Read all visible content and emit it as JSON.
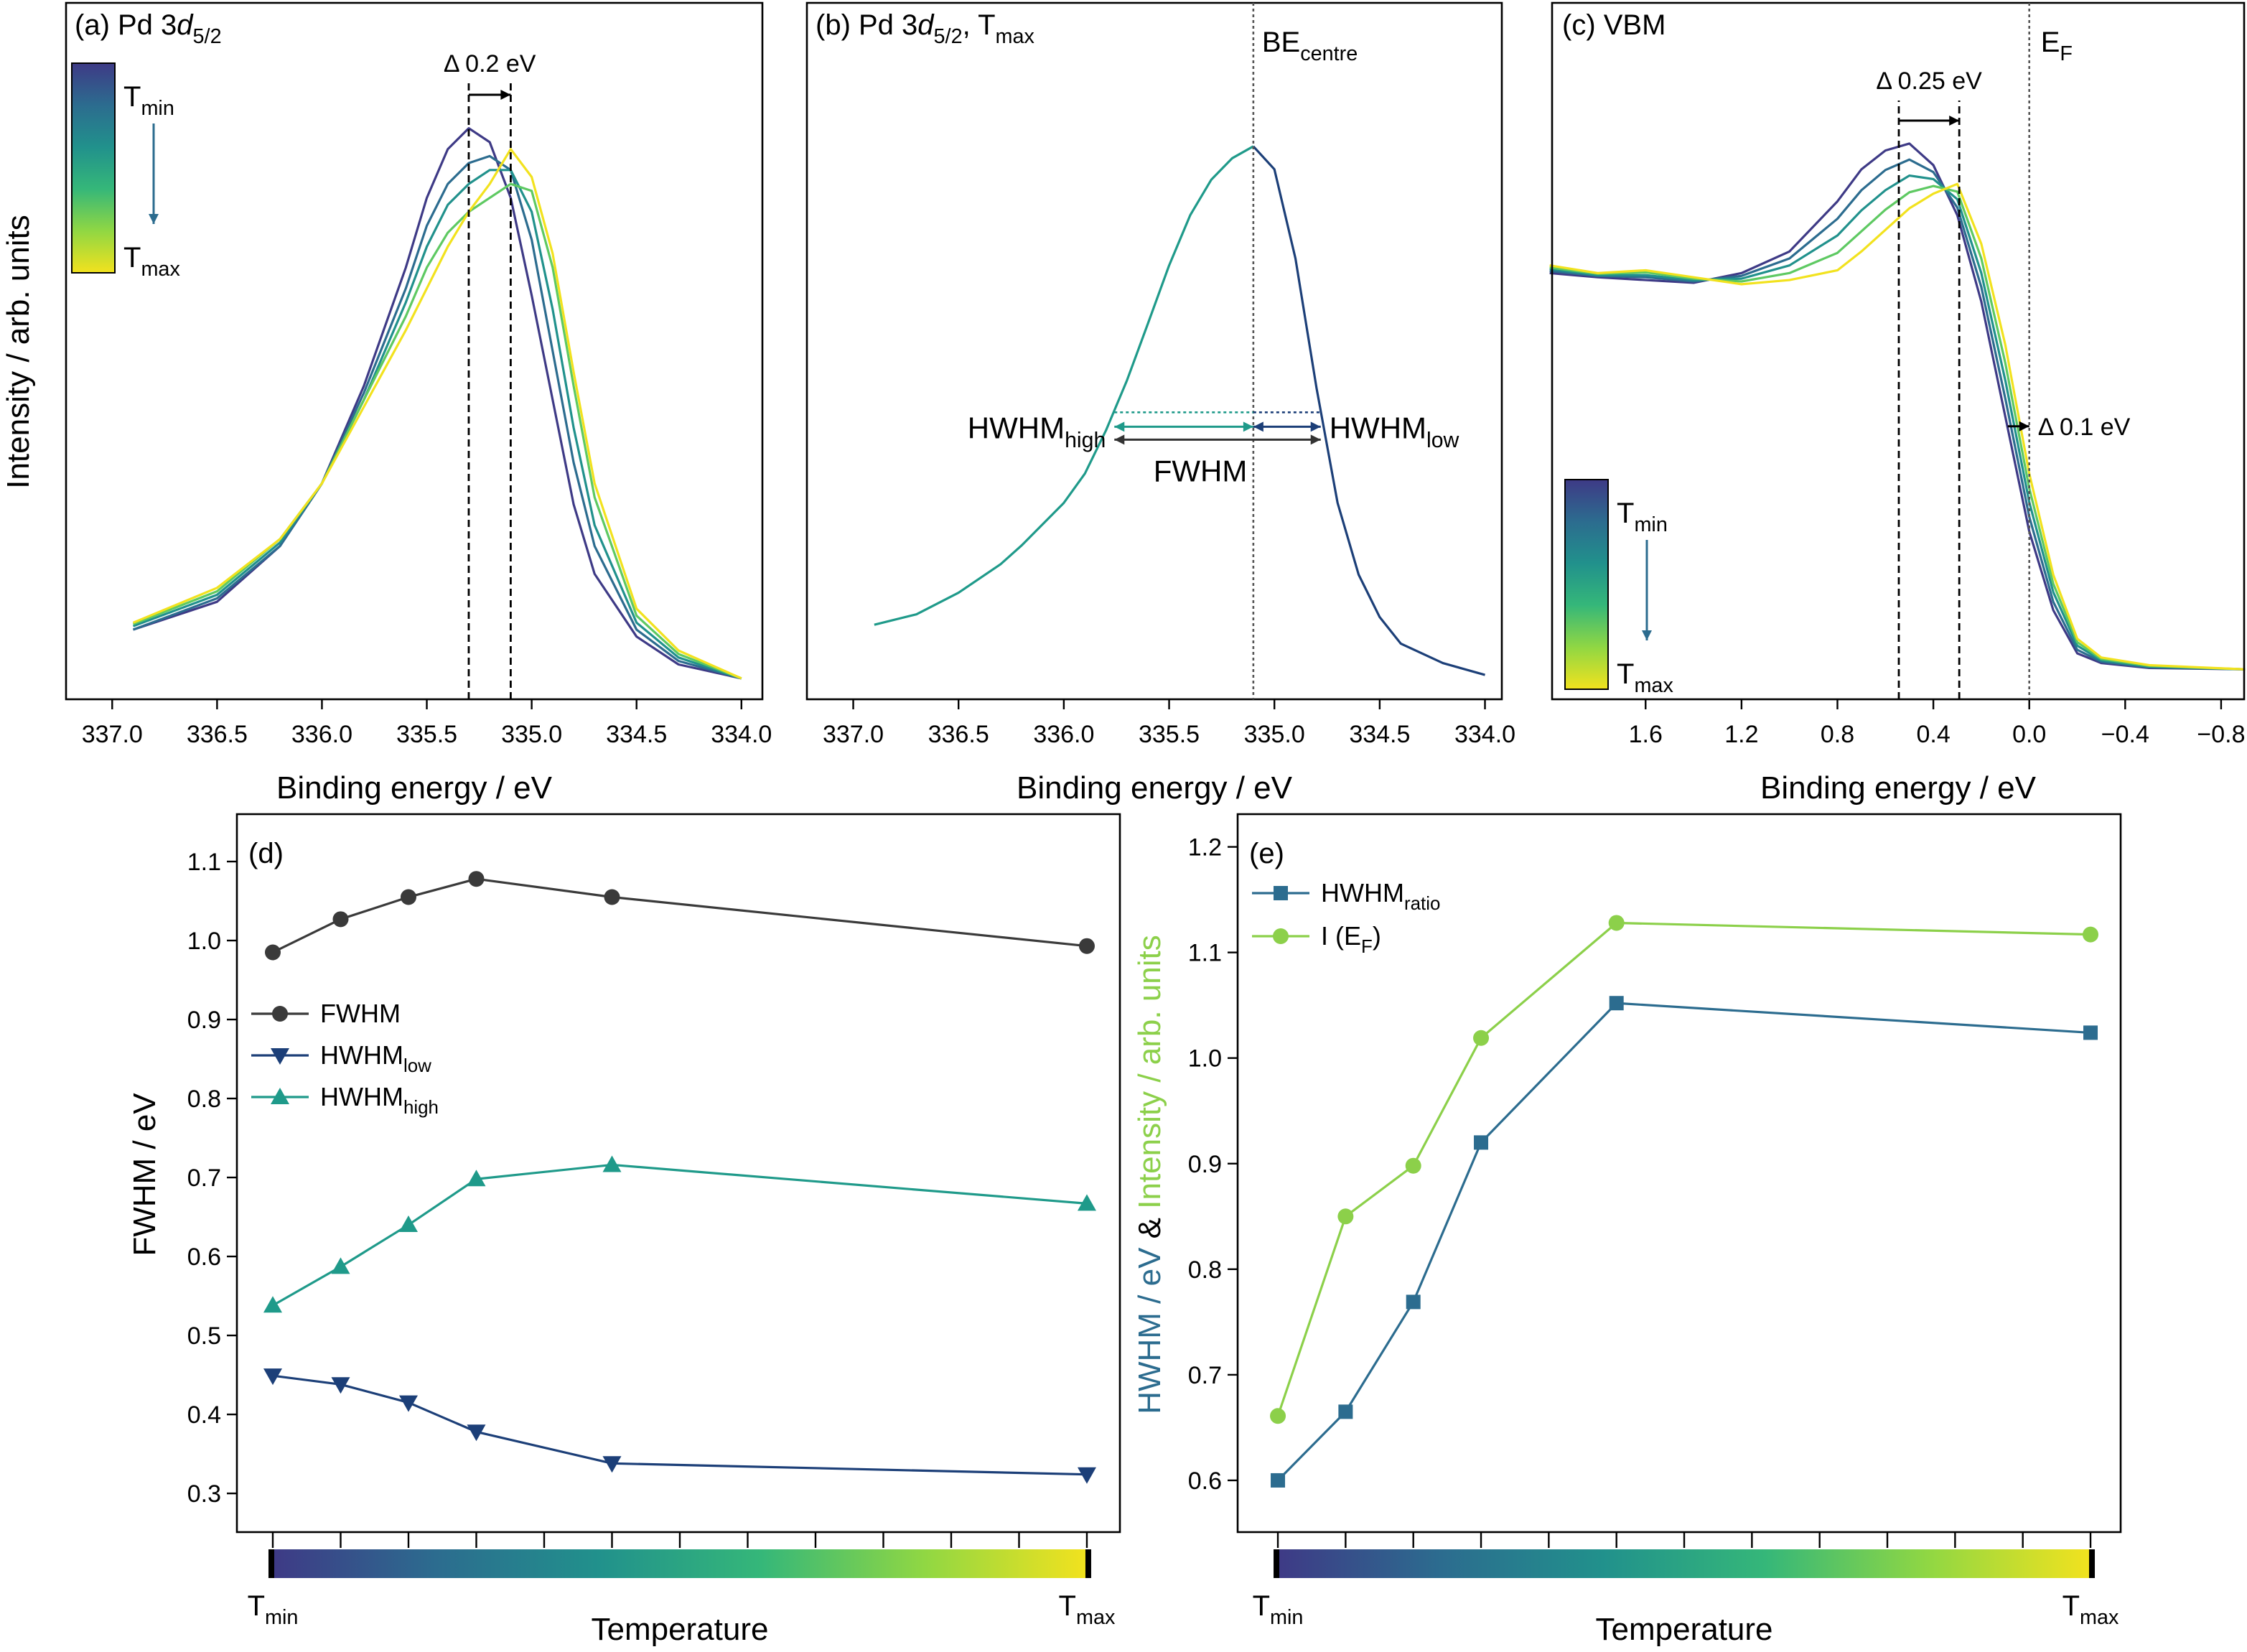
{
  "colormap": [
    "#3e3a86",
    "#2c6c8f",
    "#21918c",
    "#35b779",
    "#90d743",
    "#f2e21e"
  ],
  "chart_data": [
    {
      "type": "line",
      "title": [
        "(a) Pd 3",
        {
          "i": "d"
        },
        {
          "sub": "5/2"
        }
      ],
      "xlabel": "Binding energy / eV",
      "ylabel": "Intensity / arb. units",
      "xlim": [
        337.22,
        333.9
      ],
      "ylim": [
        0,
        1
      ],
      "xticks": [
        {
          "value": 337,
          "label": "337.0"
        },
        336.5,
        {
          "value": 336,
          "label": "336.0"
        },
        335.5,
        {
          "value": 335,
          "label": "335.0"
        },
        334.5,
        {
          "value": 334,
          "label": "334.0"
        }
      ],
      "x": [
        336.9,
        336.5,
        336.2,
        336.0,
        335.8,
        335.6,
        335.5,
        335.4,
        335.3,
        335.2,
        335.1,
        335.0,
        334.9,
        334.8,
        334.7,
        334.5,
        334.3,
        334.0
      ],
      "series": [
        {
          "color": "#3e3a86",
          "values": [
            0.1,
            0.14,
            0.22,
            0.31,
            0.45,
            0.62,
            0.72,
            0.79,
            0.82,
            0.8,
            0.72,
            0.58,
            0.43,
            0.28,
            0.18,
            0.09,
            0.05,
            0.03
          ]
        },
        {
          "color": "#2c6c8f",
          "values": [
            0.1,
            0.145,
            0.22,
            0.31,
            0.44,
            0.59,
            0.68,
            0.74,
            0.77,
            0.78,
            0.76,
            0.66,
            0.5,
            0.34,
            0.22,
            0.1,
            0.055,
            0.03
          ]
        },
        {
          "color": "#21918c",
          "values": [
            0.105,
            0.15,
            0.225,
            0.31,
            0.43,
            0.57,
            0.65,
            0.71,
            0.74,
            0.76,
            0.76,
            0.7,
            0.56,
            0.39,
            0.25,
            0.11,
            0.06,
            0.03
          ]
        },
        {
          "color": "#5ec962",
          "values": [
            0.108,
            0.155,
            0.23,
            0.31,
            0.43,
            0.55,
            0.62,
            0.67,
            0.7,
            0.72,
            0.74,
            0.73,
            0.62,
            0.45,
            0.29,
            0.12,
            0.065,
            0.03
          ]
        },
        {
          "color": "#f2e21e",
          "values": [
            0.11,
            0.16,
            0.23,
            0.31,
            0.42,
            0.53,
            0.59,
            0.65,
            0.7,
            0.74,
            0.79,
            0.75,
            0.64,
            0.47,
            0.31,
            0.13,
            0.07,
            0.03
          ]
        }
      ],
      "shift": {
        "from": 335.3,
        "to": 335.1,
        "label": "Δ 0.2 eV"
      },
      "colorbar_labels": [
        [
          "T",
          {
            "sub": "min"
          }
        ],
        [
          "T",
          {
            "sub": "max"
          }
        ]
      ]
    },
    {
      "type": "line",
      "title": [
        "(b) Pd 3",
        {
          "i": "d"
        },
        {
          "sub": "5/2"
        },
        ", T",
        {
          "sub": "max"
        }
      ],
      "xlabel": "Binding energy / eV",
      "xlim": [
        337.22,
        333.92
      ],
      "ylim": [
        0,
        1
      ],
      "xticks": [
        {
          "value": 337,
          "label": "337.0"
        },
        336.5,
        {
          "value": 336,
          "label": "336.0"
        },
        335.5,
        {
          "value": 335,
          "label": "335.0"
        },
        334.5,
        {
          "value": 334,
          "label": "334.0"
        }
      ],
      "series": [
        {
          "color": "#1f9a8a",
          "x": [
            336.9,
            336.7,
            336.5,
            336.3,
            336.2,
            336.0,
            335.9,
            335.8,
            335.7,
            335.6,
            335.5,
            335.4,
            335.3,
            335.2,
            335.1
          ],
          "values": [
            0.107,
            0.122,
            0.153,
            0.194,
            0.221,
            0.282,
            0.324,
            0.386,
            0.458,
            0.54,
            0.623,
            0.695,
            0.746,
            0.777,
            0.794
          ]
        },
        {
          "color": "#1c3f78",
          "x": [
            335.1,
            335.0,
            334.9,
            334.8,
            334.7,
            334.6,
            334.5,
            334.4,
            334.2,
            334.0
          ],
          "values": [
            0.794,
            0.761,
            0.633,
            0.447,
            0.282,
            0.179,
            0.118,
            0.08,
            0.052,
            0.035
          ]
        }
      ],
      "centre": {
        "x": 335.1,
        "label": [
          "BE",
          {
            "sub": "centre"
          }
        ]
      },
      "half_max": 0.412,
      "edges": [
        335.76,
        334.78
      ],
      "hwhm_high_label": [
        "HWHM",
        {
          "sub": "high"
        }
      ],
      "hwhm_low_label": [
        "HWHM",
        {
          "sub": "low"
        }
      ],
      "fwhm_label": "FWHM"
    },
    {
      "type": "line",
      "title": "(c) VBM",
      "xlabel": "Binding energy / eV",
      "xlim": [
        1.99,
        -0.896
      ],
      "ylim": [
        0,
        1
      ],
      "xticks": [
        1.6,
        1.2,
        0.8,
        0.4,
        {
          "value": 0,
          "label": "0.0"
        },
        {
          "value": -0.4,
          "label": "−0.4"
        },
        {
          "value": -0.8,
          "label": "−0.8"
        }
      ],
      "x": [
        2.0,
        1.8,
        1.6,
        1.4,
        1.2,
        1.0,
        0.8,
        0.7,
        0.6,
        0.5,
        0.4,
        0.3,
        0.2,
        0.1,
        0.0,
        -0.1,
        -0.2,
        -0.3,
        -0.5,
        -0.9
      ],
      "series": [
        {
          "color": "#3e3a86",
          "values": [
            0.612,
            0.606,
            0.602,
            0.598,
            0.612,
            0.643,
            0.715,
            0.761,
            0.788,
            0.798,
            0.767,
            0.695,
            0.571,
            0.406,
            0.241,
            0.128,
            0.066,
            0.052,
            0.045,
            0.043
          ]
        },
        {
          "color": "#2c6c8f",
          "values": [
            0.615,
            0.608,
            0.606,
            0.6,
            0.608,
            0.633,
            0.69,
            0.731,
            0.76,
            0.775,
            0.757,
            0.706,
            0.592,
            0.432,
            0.262,
            0.14,
            0.071,
            0.054,
            0.046,
            0.043
          ]
        },
        {
          "color": "#21918c",
          "values": [
            0.618,
            0.609,
            0.609,
            0.602,
            0.604,
            0.623,
            0.666,
            0.702,
            0.731,
            0.752,
            0.747,
            0.718,
            0.612,
            0.458,
            0.283,
            0.154,
            0.077,
            0.056,
            0.047,
            0.043
          ]
        },
        {
          "color": "#5ec962",
          "values": [
            0.62,
            0.611,
            0.613,
            0.604,
            0.6,
            0.612,
            0.641,
            0.672,
            0.703,
            0.728,
            0.737,
            0.729,
            0.633,
            0.483,
            0.303,
            0.166,
            0.082,
            0.058,
            0.048,
            0.043
          ]
        },
        {
          "color": "#f2e21e",
          "values": [
            0.623,
            0.612,
            0.616,
            0.606,
            0.596,
            0.602,
            0.616,
            0.643,
            0.674,
            0.705,
            0.726,
            0.74,
            0.654,
            0.509,
            0.324,
            0.179,
            0.087,
            0.06,
            0.049,
            0.043
          ]
        }
      ],
      "shift": {
        "from": 0.544,
        "to": 0.292,
        "label": "Δ 0.25 eV"
      },
      "ef": {
        "x": 0,
        "label": [
          "E",
          {
            "sub": "F"
          }
        ]
      },
      "shift2": {
        "from": 0.09,
        "to": 0,
        "level": 0.392,
        "label": "Δ 0.1 eV"
      },
      "colorbar_labels": [
        [
          "T",
          {
            "sub": "min"
          }
        ],
        [
          "T",
          {
            "sub": "max"
          }
        ]
      ]
    },
    {
      "type": "line",
      "title": "(d)",
      "xlabel": "Temperature",
      "ylabel": "FWHM / eV",
      "xlim": [
        -0.529,
        12.487
      ],
      "ylim": [
        0.251,
        1.16
      ],
      "xticks": [
        0,
        1,
        2,
        3,
        4,
        5,
        6,
        7,
        8,
        9,
        10,
        11,
        12
      ],
      "xtick_labels": false,
      "yticks": [
        1.1,
        {
          "value": 1,
          "label": "1.0"
        },
        0.9,
        0.8,
        0.7,
        0.6,
        0.5,
        0.4,
        0.3
      ],
      "x": [
        0,
        1,
        2,
        3,
        5,
        12
      ],
      "legend": "center left",
      "series": [
        {
          "name": "FWHM",
          "color": "#3a3a3a",
          "marker": "circle",
          "values": [
            0.985,
            1.027,
            1.055,
            1.078,
            1.055,
            0.993
          ]
        },
        {
          "name": [
            "HWHM",
            {
              "sub": "low"
            }
          ],
          "color": "#1c3f78",
          "marker": "triangle-down",
          "values": [
            0.449,
            0.438,
            0.415,
            0.378,
            0.338,
            0.324
          ]
        },
        {
          "name": [
            "HWHM",
            {
              "sub": "high"
            }
          ],
          "color": "#1f9a8a",
          "marker": "triangle-up",
          "values": [
            0.538,
            0.587,
            0.64,
            0.698,
            0.716,
            0.667
          ]
        }
      ],
      "colorbar_labels": [
        [
          "T",
          {
            "sub": "min"
          }
        ],
        [
          "T",
          {
            "sub": "max"
          }
        ]
      ]
    },
    {
      "type": "line",
      "title": "(e)",
      "xlabel": "Temperature",
      "ylabel": [
        "HWHM / eV",
        " & ",
        "Intensity / arb. units"
      ],
      "ylabel_colors": [
        "#2c6c8f",
        "#000000",
        "#8cd04a"
      ],
      "xlim": [
        -0.594,
        12.445
      ],
      "ylim": [
        0.551,
        1.231
      ],
      "xticks": [
        0,
        1,
        2,
        3,
        4,
        5,
        6,
        7,
        8,
        9,
        10,
        11,
        12
      ],
      "xtick_labels": false,
      "yticks": [
        1.2,
        1.1,
        {
          "value": 1,
          "label": "1.0"
        },
        0.9,
        0.8,
        0.7,
        0.6
      ],
      "x": [
        0,
        1,
        2,
        3,
        5,
        12
      ],
      "legend": "upper left",
      "series": [
        {
          "name": [
            "HWHM",
            {
              "sub": "ratio"
            }
          ],
          "color": "#2c6c8f",
          "marker": "square",
          "values": [
            0.6,
            0.665,
            0.769,
            0.92,
            1.052,
            1.024
          ]
        },
        {
          "name": [
            "I (E",
            {
              "sub": "F"
            },
            ")"
          ],
          "color": "#8cd04a",
          "marker": "circle",
          "values": [
            0.661,
            0.85,
            0.898,
            1.019,
            1.128,
            1.117
          ]
        }
      ],
      "colorbar_labels": [
        [
          "T",
          {
            "sub": "min"
          }
        ],
        [
          "T",
          {
            "sub": "max"
          }
        ]
      ]
    }
  ]
}
